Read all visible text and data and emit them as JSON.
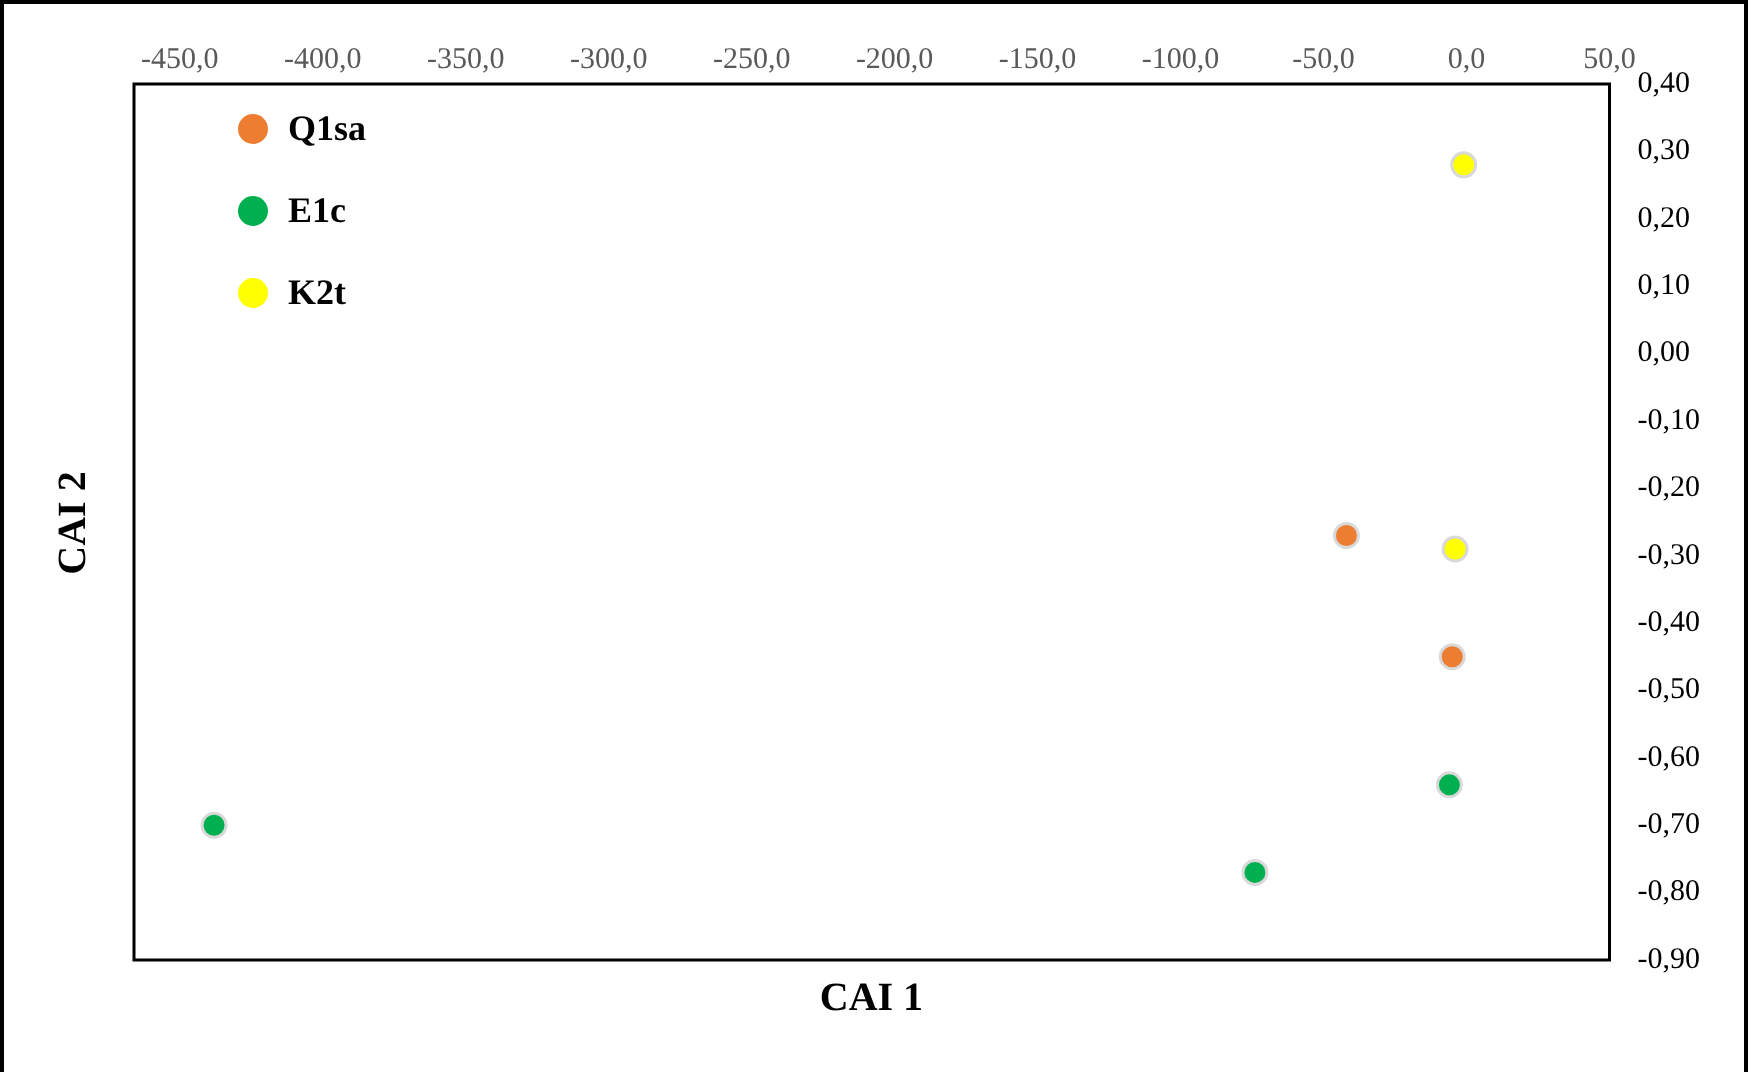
{
  "chart_data": {
    "type": "scatter",
    "xlabel": "CAI 1",
    "ylabel": "CAI 2",
    "series": [
      {
        "name": "Q1sa",
        "color": "#ed7d31",
        "x": [
          -42,
          -5
        ],
        "values": [
          -0.27,
          -0.45
        ]
      },
      {
        "name": "E1c",
        "color": "#00b050",
        "x": [
          -438,
          -74,
          -6
        ],
        "values": [
          -0.7,
          -0.77,
          -0.64
        ]
      },
      {
        "name": "K2t",
        "color": "#ffff00",
        "x": [
          -1,
          -4
        ],
        "values": [
          0.28,
          -0.29
        ]
      }
    ],
    "xlim": [
      -466,
      50
    ],
    "xticks": [
      {
        "value": -450,
        "label": "-450,0"
      },
      {
        "value": -400,
        "label": "-400,0"
      },
      {
        "value": -350,
        "label": "-350,0"
      },
      {
        "value": -300,
        "label": "-300,0"
      },
      {
        "value": -250,
        "label": "-250,0"
      },
      {
        "value": -200,
        "label": "-200,0"
      },
      {
        "value": -150,
        "label": "-150,0"
      },
      {
        "value": -100,
        "label": "-100,0"
      },
      {
        "value": -50,
        "label": "-50,0"
      },
      {
        "value": 0,
        "label": "0,0"
      },
      {
        "value": 50,
        "label": "50,0"
      }
    ],
    "ylim": [
      -0.9,
      0.4
    ],
    "yticks": [
      {
        "value": 0.4,
        "label": "0,40"
      },
      {
        "value": 0.3,
        "label": "0,30"
      },
      {
        "value": 0.2,
        "label": "0,20"
      },
      {
        "value": 0.1,
        "label": "0,10"
      },
      {
        "value": 0,
        "label": "0,00"
      },
      {
        "value": -0.1,
        "label": "-0,10"
      },
      {
        "value": -0.2,
        "label": "-0,20"
      },
      {
        "value": -0.3,
        "label": "-0,30"
      },
      {
        "value": -0.4,
        "label": "-0,40"
      },
      {
        "value": -0.5,
        "label": "-0,50"
      },
      {
        "value": -0.6,
        "label": "-0,60"
      },
      {
        "value": -0.7,
        "label": "-0,70"
      },
      {
        "value": -0.8,
        "label": "-0,80"
      },
      {
        "value": -0.9,
        "label": "-0,90"
      }
    ],
    "grid": false,
    "legend": "top left",
    "marker": "circle"
  }
}
